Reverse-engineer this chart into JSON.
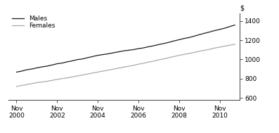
{
  "males_x": [
    2000.0,
    2000.25,
    2000.5,
    2000.75,
    2001.0,
    2001.25,
    2001.5,
    2001.75,
    2002.0,
    2002.25,
    2002.5,
    2002.75,
    2003.0,
    2003.25,
    2003.5,
    2003.75,
    2004.0,
    2004.25,
    2004.5,
    2004.75,
    2005.0,
    2005.25,
    2005.5,
    2005.75,
    2006.0,
    2006.25,
    2006.5,
    2006.75,
    2007.0,
    2007.25,
    2007.5,
    2007.75,
    2008.0,
    2008.25,
    2008.5,
    2008.75,
    2009.0,
    2009.25,
    2009.5,
    2009.75,
    2010.0,
    2010.25,
    2010.5,
    2010.75
  ],
  "males_y": [
    868,
    878,
    892,
    900,
    912,
    922,
    930,
    942,
    955,
    962,
    975,
    985,
    998,
    1005,
    1018,
    1030,
    1042,
    1050,
    1058,
    1068,
    1078,
    1088,
    1095,
    1102,
    1112,
    1120,
    1132,
    1142,
    1155,
    1165,
    1178,
    1192,
    1205,
    1218,
    1228,
    1242,
    1258,
    1272,
    1285,
    1300,
    1312,
    1325,
    1342,
    1358
  ],
  "females_x": [
    2000.0,
    2000.25,
    2000.5,
    2000.75,
    2001.0,
    2001.25,
    2001.5,
    2001.75,
    2002.0,
    2002.25,
    2002.5,
    2002.75,
    2003.0,
    2003.25,
    2003.5,
    2003.75,
    2004.0,
    2004.25,
    2004.5,
    2004.75,
    2005.0,
    2005.25,
    2005.5,
    2005.75,
    2006.0,
    2006.25,
    2006.5,
    2006.75,
    2007.0,
    2007.25,
    2007.5,
    2007.75,
    2008.0,
    2008.25,
    2008.5,
    2008.75,
    2009.0,
    2009.25,
    2009.5,
    2009.75,
    2010.0,
    2010.25,
    2010.5,
    2010.75
  ],
  "females_y": [
    718,
    728,
    738,
    748,
    758,
    765,
    772,
    782,
    792,
    800,
    808,
    818,
    828,
    838,
    848,
    858,
    868,
    878,
    888,
    898,
    908,
    918,
    928,
    938,
    950,
    960,
    972,
    982,
    995,
    1005,
    1018,
    1030,
    1042,
    1052,
    1062,
    1072,
    1085,
    1095,
    1105,
    1118,
    1128,
    1138,
    1148,
    1158
  ],
  "males_color": "#1a1a1a",
  "females_color": "#aaaaaa",
  "males_label": "Males",
  "females_label": "Females",
  "xticks": [
    2000,
    2002,
    2004,
    2006,
    2008,
    2010
  ],
  "xtick_labels_top": [
    "Nov",
    "Nov",
    "Nov",
    "Nov",
    "Nov",
    "Nov"
  ],
  "xtick_labels_bottom": [
    "2000",
    "2002",
    "2004",
    "2006",
    "2008",
    "2010"
  ],
  "xlim": [
    1999.6,
    2011.0
  ],
  "ylim": [
    580,
    1480
  ],
  "yticks": [
    600,
    800,
    1000,
    1200,
    1400
  ],
  "ylabel": "$",
  "background_color": "#ffffff",
  "line_width": 0.9
}
